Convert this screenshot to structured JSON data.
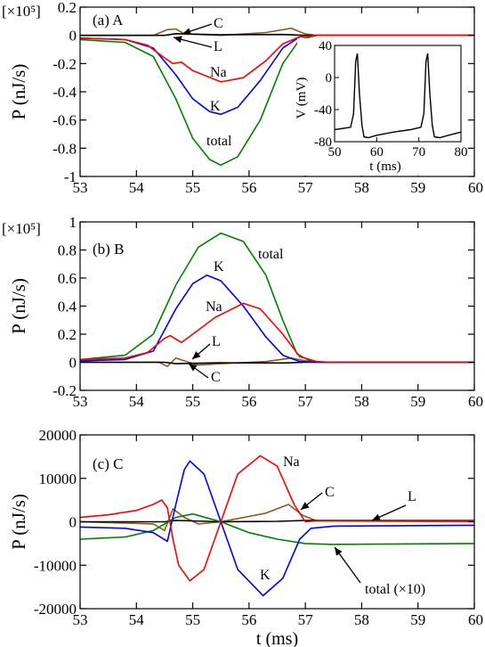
{
  "colors": {
    "Na": "#ff0000",
    "K": "#0000ff",
    "L": "#000000",
    "C": "#8b5a1e",
    "total": "#008000",
    "inset": "#000000"
  },
  "chart_data": [
    {
      "type": "line",
      "panel_label": "(a) A",
      "multiplier": "[×10⁵]",
      "ylabel": "P (nJ/s)",
      "xlabel": "",
      "xlim": [
        53,
        60
      ],
      "ylim": [
        -1.0,
        0.2
      ],
      "x_ticks": [
        "53",
        "54",
        "55",
        "56",
        "57",
        "58",
        "59",
        "60"
      ],
      "y_ticks": [
        "0.2",
        "0",
        "-0.2",
        "-0.4",
        "-0.6",
        "-0.8",
        "-1"
      ],
      "series": [
        {
          "name": "Na",
          "points": [
            [
              53,
              -0.02
            ],
            [
              53.8,
              -0.03
            ],
            [
              54.2,
              -0.07
            ],
            [
              54.5,
              -0.16
            ],
            [
              54.65,
              -0.2
            ],
            [
              54.8,
              -0.19
            ],
            [
              55.0,
              -0.25
            ],
            [
              55.5,
              -0.33
            ],
            [
              55.9,
              -0.3
            ],
            [
              56.3,
              -0.18
            ],
            [
              56.6,
              -0.06
            ],
            [
              56.9,
              -0.01
            ],
            [
              57.2,
              0
            ],
            [
              60,
              0
            ]
          ]
        },
        {
          "name": "K",
          "points": [
            [
              53,
              -0.02
            ],
            [
              53.8,
              -0.03
            ],
            [
              54.3,
              -0.09
            ],
            [
              54.7,
              -0.28
            ],
            [
              55.0,
              -0.45
            ],
            [
              55.3,
              -0.54
            ],
            [
              55.5,
              -0.56
            ],
            [
              55.8,
              -0.51
            ],
            [
              56.2,
              -0.32
            ],
            [
              56.6,
              -0.09
            ],
            [
              56.9,
              -0.01
            ],
            [
              57.2,
              0
            ],
            [
              60,
              0
            ]
          ]
        },
        {
          "name": "total",
          "points": [
            [
              53,
              -0.03
            ],
            [
              53.8,
              -0.05
            ],
            [
              54.3,
              -0.15
            ],
            [
              54.7,
              -0.45
            ],
            [
              55.0,
              -0.73
            ],
            [
              55.3,
              -0.88
            ],
            [
              55.5,
              -0.92
            ],
            [
              55.8,
              -0.86
            ],
            [
              56.2,
              -0.6
            ],
            [
              56.6,
              -0.2
            ],
            [
              56.9,
              -0.03
            ],
            [
              57.2,
              0
            ],
            [
              60,
              0
            ]
          ]
        },
        {
          "name": "L",
          "points": [
            [
              53,
              0
            ],
            [
              54.5,
              0
            ],
            [
              54.7,
              0.012
            ],
            [
              55.5,
              0.004
            ],
            [
              56.6,
              0.006
            ],
            [
              57,
              0
            ],
            [
              60,
              0
            ]
          ]
        },
        {
          "name": "C",
          "points": [
            [
              53,
              0
            ],
            [
              54.3,
              0
            ],
            [
              54.55,
              0.04
            ],
            [
              54.7,
              0.045
            ],
            [
              54.85,
              0.01
            ],
            [
              55.5,
              0
            ],
            [
              56.3,
              0.02
            ],
            [
              56.75,
              0.05
            ],
            [
              57.0,
              0.01
            ],
            [
              57.2,
              0
            ],
            [
              60,
              0
            ]
          ]
        }
      ],
      "annotations": [
        "Na",
        "K",
        "total",
        "C",
        "L"
      ],
      "inset": {
        "type": "line",
        "xlabel": "t (ms)",
        "ylabel": "V (mV)",
        "xlim": [
          50,
          80
        ],
        "ylim": [
          -80,
          40
        ],
        "x_ticks": [
          "50",
          "60",
          "70",
          "80"
        ],
        "y_ticks": [
          "40",
          "0",
          "-40",
          "-80"
        ],
        "points": [
          [
            50,
            -65
          ],
          [
            53.8,
            -62
          ],
          [
            54.5,
            -45
          ],
          [
            55.0,
            20
          ],
          [
            55.4,
            30
          ],
          [
            55.9,
            -20
          ],
          [
            56.5,
            -60
          ],
          [
            57.0,
            -74
          ],
          [
            58,
            -75
          ],
          [
            60,
            -72
          ],
          [
            64,
            -68
          ],
          [
            68,
            -65
          ],
          [
            70.5,
            -62
          ],
          [
            71.2,
            -45
          ],
          [
            71.7,
            20
          ],
          [
            72.1,
            30
          ],
          [
            72.6,
            -20
          ],
          [
            73.2,
            -60
          ],
          [
            73.7,
            -74
          ],
          [
            75,
            -75
          ],
          [
            77,
            -72
          ],
          [
            80,
            -68
          ]
        ]
      }
    },
    {
      "type": "line",
      "panel_label": "(b) B",
      "multiplier": "[×10⁵]",
      "ylabel": "P (nJ/s)",
      "xlabel": "",
      "xlim": [
        53,
        60
      ],
      "ylim": [
        -0.2,
        1.0
      ],
      "x_ticks": [
        "53",
        "54",
        "55",
        "56",
        "57",
        "58",
        "59",
        "60"
      ],
      "y_ticks": [
        "1",
        "0.8",
        "0.6",
        "0.4",
        "0.2",
        "0",
        "-0.2"
      ],
      "series": [
        {
          "name": "Na",
          "points": [
            [
              53,
              0.02
            ],
            [
              53.8,
              0.03
            ],
            [
              54.2,
              0.07
            ],
            [
              54.5,
              0.17
            ],
            [
              54.6,
              0.19
            ],
            [
              54.8,
              0.14
            ],
            [
              55.0,
              0.2
            ],
            [
              55.4,
              0.32
            ],
            [
              55.9,
              0.42
            ],
            [
              56.2,
              0.38
            ],
            [
              56.6,
              0.2
            ],
            [
              56.9,
              0.04
            ],
            [
              57.2,
              0.005
            ],
            [
              57.5,
              0
            ],
            [
              60,
              0
            ]
          ]
        },
        {
          "name": "K",
          "points": [
            [
              53,
              0.01
            ],
            [
              53.8,
              0.02
            ],
            [
              54.3,
              0.08
            ],
            [
              54.7,
              0.38
            ],
            [
              55.0,
              0.56
            ],
            [
              55.25,
              0.62
            ],
            [
              55.5,
              0.58
            ],
            [
              55.9,
              0.4
            ],
            [
              56.3,
              0.18
            ],
            [
              56.6,
              0.05
            ],
            [
              56.9,
              0.005
            ],
            [
              57.2,
              0
            ],
            [
              60,
              0
            ]
          ]
        },
        {
          "name": "total",
          "points": [
            [
              53,
              0.02
            ],
            [
              53.8,
              0.05
            ],
            [
              54.3,
              0.2
            ],
            [
              54.7,
              0.55
            ],
            [
              55.1,
              0.82
            ],
            [
              55.5,
              0.92
            ],
            [
              55.9,
              0.86
            ],
            [
              56.3,
              0.62
            ],
            [
              56.6,
              0.3
            ],
            [
              56.85,
              0.06
            ],
            [
              57.1,
              0.005
            ],
            [
              57.3,
              0
            ],
            [
              60,
              0
            ]
          ]
        },
        {
          "name": "L",
          "points": [
            [
              53,
              0
            ],
            [
              54.5,
              0
            ],
            [
              54.7,
              -0.01
            ],
            [
              55.5,
              -0.004
            ],
            [
              56.6,
              -0.005
            ],
            [
              57,
              0
            ],
            [
              60,
              0
            ]
          ]
        },
        {
          "name": "C",
          "points": [
            [
              53,
              0
            ],
            [
              54.4,
              0
            ],
            [
              54.55,
              -0.03
            ],
            [
              54.7,
              0.03
            ],
            [
              54.85,
              0.01
            ],
            [
              55.1,
              -0.02
            ],
            [
              55.5,
              -0.01
            ],
            [
              56.3,
              0.005
            ],
            [
              56.75,
              0.03
            ],
            [
              57.0,
              0.01
            ],
            [
              57.2,
              0
            ],
            [
              60,
              0
            ]
          ]
        }
      ],
      "annotations": [
        "total",
        "K",
        "Na",
        "L",
        "C"
      ]
    },
    {
      "type": "line",
      "panel_label": "(c) C",
      "ylabel": "P (nJ/s)",
      "xlabel": "t (ms)",
      "xlim": [
        53,
        60
      ],
      "ylim": [
        -20000,
        20000
      ],
      "x_ticks": [
        "53",
        "54",
        "55",
        "56",
        "57",
        "58",
        "59",
        "60"
      ],
      "y_ticks": [
        "20000",
        "10000",
        "0",
        "-10000",
        "-20000"
      ],
      "series": [
        {
          "name": "Na",
          "points": [
            [
              53,
              1000
            ],
            [
              53.5,
              1600
            ],
            [
              54.0,
              2600
            ],
            [
              54.3,
              4000
            ],
            [
              54.45,
              5000
            ],
            [
              54.55,
              3200
            ],
            [
              54.65,
              -4000
            ],
            [
              54.75,
              -10000
            ],
            [
              54.95,
              -13600
            ],
            [
              55.2,
              -11000
            ],
            [
              55.5,
              0
            ],
            [
              55.8,
              11000
            ],
            [
              56.2,
              15200
            ],
            [
              56.5,
              12800
            ],
            [
              56.8,
              4000
            ],
            [
              57.0,
              0
            ],
            [
              57.2,
              200
            ],
            [
              58,
              200
            ],
            [
              60,
              200
            ]
          ]
        },
        {
          "name": "K",
          "points": [
            [
              53,
              -1200
            ],
            [
              53.8,
              -1500
            ],
            [
              54.3,
              -2500
            ],
            [
              54.55,
              -4500
            ],
            [
              54.7,
              4000
            ],
            [
              54.85,
              12000
            ],
            [
              54.95,
              14000
            ],
            [
              55.2,
              11000
            ],
            [
              55.5,
              0
            ],
            [
              55.8,
              -11000
            ],
            [
              56.25,
              -17000
            ],
            [
              56.6,
              -13000
            ],
            [
              56.9,
              -4000
            ],
            [
              57.1,
              -1500
            ],
            [
              57.5,
              -1000
            ],
            [
              60,
              -800
            ]
          ]
        },
        {
          "name": "total",
          "points": [
            [
              53,
              -4000
            ],
            [
              53.8,
              -3500
            ],
            [
              54.3,
              -2000
            ],
            [
              54.7,
              1000
            ],
            [
              55.0,
              1800
            ],
            [
              55.5,
              0
            ],
            [
              56.0,
              -2500
            ],
            [
              56.5,
              -4000
            ],
            [
              57.0,
              -5000
            ],
            [
              57.5,
              -5200
            ],
            [
              60,
              -5000
            ]
          ]
        },
        {
          "name": "L",
          "points": [
            [
              53,
              0
            ],
            [
              54.5,
              0
            ],
            [
              54.7,
              300
            ],
            [
              55.0,
              200
            ],
            [
              55.5,
              0
            ],
            [
              56.5,
              100
            ],
            [
              57.0,
              300
            ],
            [
              60,
              300
            ]
          ]
        },
        {
          "name": "C",
          "points": [
            [
              53,
              0
            ],
            [
              54.3,
              -500
            ],
            [
              54.5,
              -2000
            ],
            [
              54.65,
              3000
            ],
            [
              54.85,
              1000
            ],
            [
              55.1,
              -500
            ],
            [
              55.5,
              0
            ],
            [
              56.3,
              2000
            ],
            [
              56.7,
              4000
            ],
            [
              56.95,
              1500
            ],
            [
              57.2,
              200
            ],
            [
              60,
              0
            ]
          ]
        }
      ],
      "annotations": [
        "Na",
        "C",
        "L",
        "K",
        "total (×10)"
      ]
    }
  ]
}
